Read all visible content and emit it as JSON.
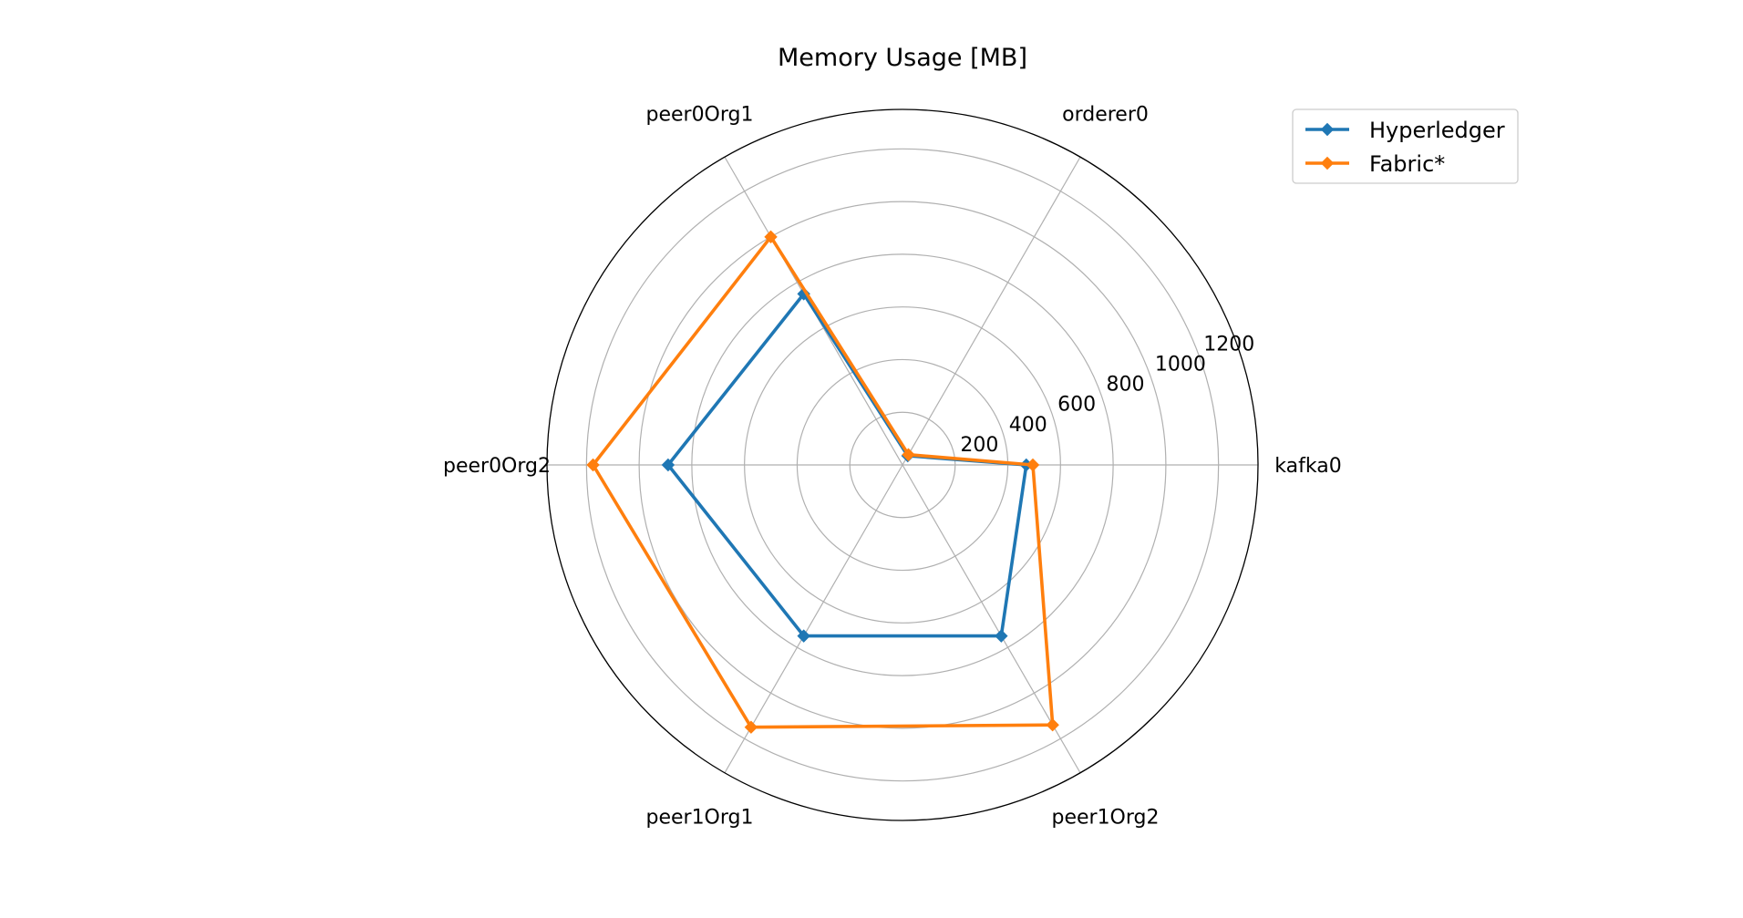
{
  "chart_data": {
    "type": "radar",
    "title": "Memory Usage [MB]",
    "categories": [
      "kafka0",
      "orderer0",
      "peer0Org1",
      "peer0Org2",
      "peer1Org1",
      "peer1Org2"
    ],
    "rlim": [
      0,
      1350
    ],
    "r_ticks": [
      200,
      400,
      600,
      800,
      1000,
      1200
    ],
    "r_tick_labels": [
      "200",
      "400",
      "600",
      "800",
      "1000",
      "1200"
    ],
    "grid": true,
    "legend_position": "top-right",
    "series": [
      {
        "name": "Hyperledger",
        "color": "#1f77b4",
        "marker": "diamond",
        "values": [
          470,
          40,
          750,
          890,
          750,
          750
        ]
      },
      {
        "name": "Fabric*",
        "color": "#ff7f0e",
        "marker": "diamond",
        "values": [
          495,
          45,
          1000,
          1175,
          1150,
          1140
        ]
      }
    ]
  }
}
